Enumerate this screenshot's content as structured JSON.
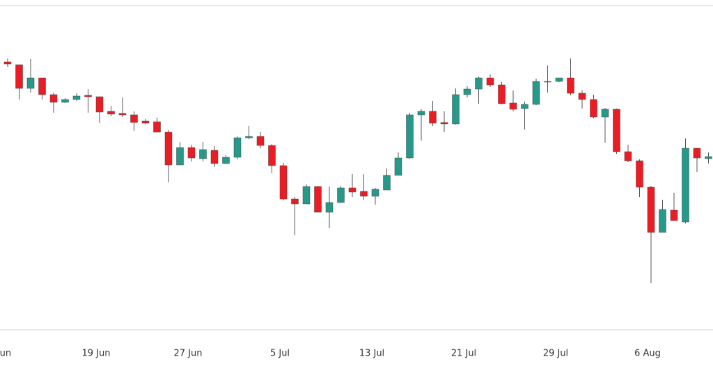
{
  "chart_data": {
    "type": "candlestick",
    "categories": [
      "Jun",
      null,
      null,
      null,
      null,
      null,
      null,
      null,
      "19 Jun",
      null,
      null,
      null,
      null,
      null,
      null,
      null,
      "27 Jun",
      null,
      null,
      null,
      null,
      null,
      null,
      null,
      "5 Jul",
      null,
      null,
      null,
      null,
      null,
      null,
      null,
      "13 Jul",
      null,
      null,
      null,
      null,
      null,
      null,
      null,
      "21 Jul",
      null,
      null,
      null,
      null,
      null,
      null,
      null,
      "29 Jul",
      null,
      null,
      null,
      null,
      null,
      null,
      null,
      "6 Aug",
      null,
      null,
      null,
      null,
      null
    ],
    "open": [
      385,
      381,
      347,
      362,
      338,
      327,
      331,
      337,
      335,
      314,
      311,
      309,
      300,
      299,
      284,
      237,
      262,
      246,
      258,
      239,
      248,
      276,
      278,
      265,
      236,
      188,
      181,
      206,
      169,
      183,
      204,
      199,
      192,
      201,
      222,
      247,
      309,
      314,
      298,
      296,
      338,
      346,
      362,
      352,
      326,
      318,
      324,
      356,
      357,
      362,
      340,
      331,
      306,
      317,
      256,
      243,
      205,
      140,
      172,
      155,
      261,
      246
    ],
    "high": [
      390,
      381,
      389,
      362,
      341,
      333,
      340,
      346,
      335,
      322,
      334,
      314,
      303,
      305,
      287,
      270,
      266,
      270,
      264,
      251,
      278,
      293,
      284,
      267,
      240,
      191,
      209,
      207,
      206,
      207,
      224,
      224,
      204,
      232,
      255,
      312,
      317,
      329,
      314,
      347,
      350,
      364,
      367,
      356,
      344,
      328,
      361,
      380,
      362,
      390,
      344,
      338,
      319,
      318,
      266,
      245,
      207,
      187,
      197,
      275,
      261,
      255
    ],
    "low": [
      378,
      331,
      341,
      331,
      312,
      326,
      329,
      312,
      297,
      307,
      306,
      286,
      296,
      284,
      212,
      237,
      242,
      242,
      234,
      238,
      245,
      274,
      261,
      225,
      186,
      136,
      181,
      169,
      146,
      182,
      191,
      187,
      180,
      201,
      222,
      246,
      272,
      293,
      284,
      295,
      334,
      325,
      349,
      324,
      314,
      288,
      323,
      341,
      356,
      337,
      318,
      304,
      269,
      253,
      241,
      191,
      67,
      140,
      157,
      153,
      227,
      239
    ],
    "close": [
      382,
      347,
      362,
      338,
      327,
      331,
      336,
      335,
      313,
      310,
      309,
      298,
      297,
      284,
      237,
      262,
      247,
      259,
      239,
      248,
      276,
      278,
      265,
      236,
      188,
      181,
      206,
      169,
      183,
      204,
      198,
      192,
      202,
      222,
      247,
      309,
      314,
      297,
      296,
      338,
      346,
      362,
      352,
      325,
      317,
      324,
      357,
      357,
      362,
      340,
      331,
      306,
      317,
      256,
      243,
      205,
      140,
      173,
      157,
      261,
      247,
      249
    ],
    "up_color": "#26998a",
    "down_color": "#ec1c24",
    "ylim": [
      0,
      466
    ]
  }
}
